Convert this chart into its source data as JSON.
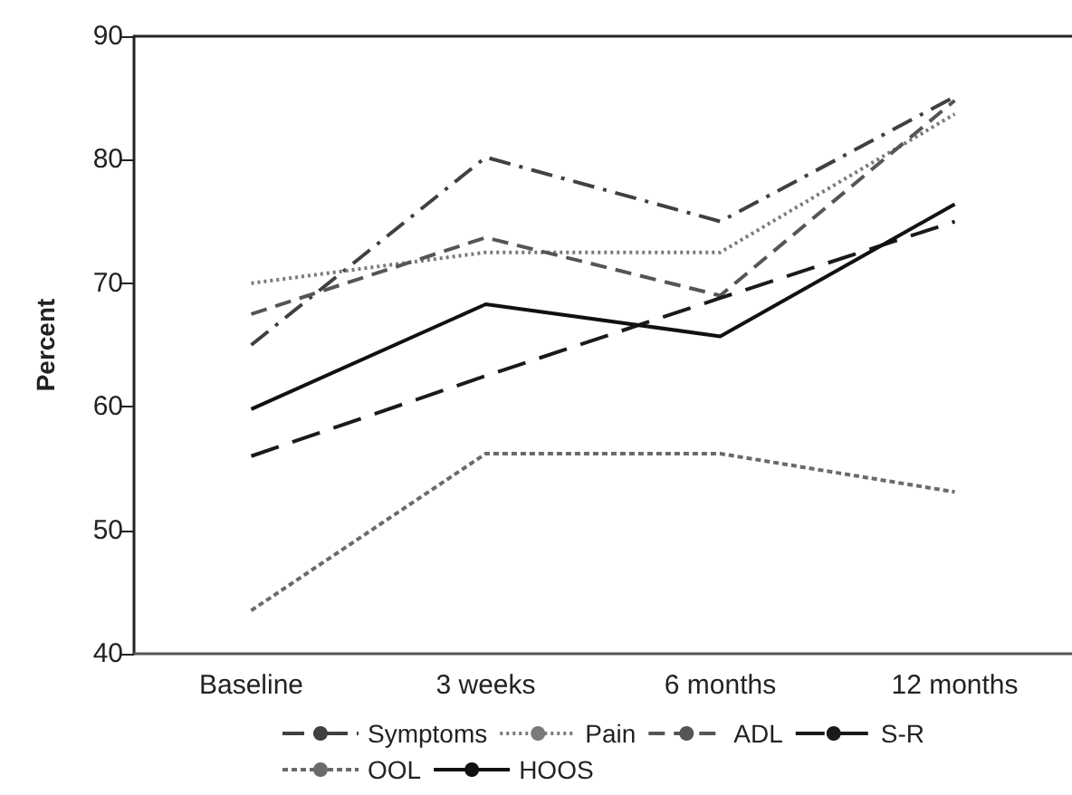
{
  "chart_data": {
    "type": "line",
    "ylabel": "Percent",
    "categories": [
      "Baseline",
      "3 weeks",
      "6 months",
      "12 months"
    ],
    "series": [
      {
        "name": "Symptoms",
        "color": "#404040",
        "line_style": "dashdot",
        "values": [
          65,
          80.2,
          75,
          85.1
        ]
      },
      {
        "name": "Pain",
        "color": "#7a7a7a",
        "line_style": "dotted",
        "values": [
          70,
          72.5,
          72.5,
          83.7
        ]
      },
      {
        "name": "ADL",
        "color": "#555555",
        "line_style": "dashed",
        "values": [
          67.5,
          73.7,
          69,
          84.8
        ]
      },
      {
        "name": "S-R",
        "color": "#1a1a1a",
        "line_style": "longdash",
        "values": [
          56,
          62.5,
          68.8,
          75
        ]
      },
      {
        "name": "OOL",
        "color": "#6a6a6a",
        "line_style": "shortdash",
        "values": [
          43.5,
          56.2,
          56.2,
          53.1
        ]
      },
      {
        "name": "HOOS",
        "color": "#111111",
        "line_style": "solid",
        "values": [
          59.8,
          68.3,
          65.7,
          76.4
        ]
      }
    ],
    "ylim": [
      40,
      90
    ],
    "yticks": [
      40,
      50,
      60,
      70,
      80,
      90
    ],
    "grid": false,
    "legend": "bottom",
    "marker": "none"
  }
}
